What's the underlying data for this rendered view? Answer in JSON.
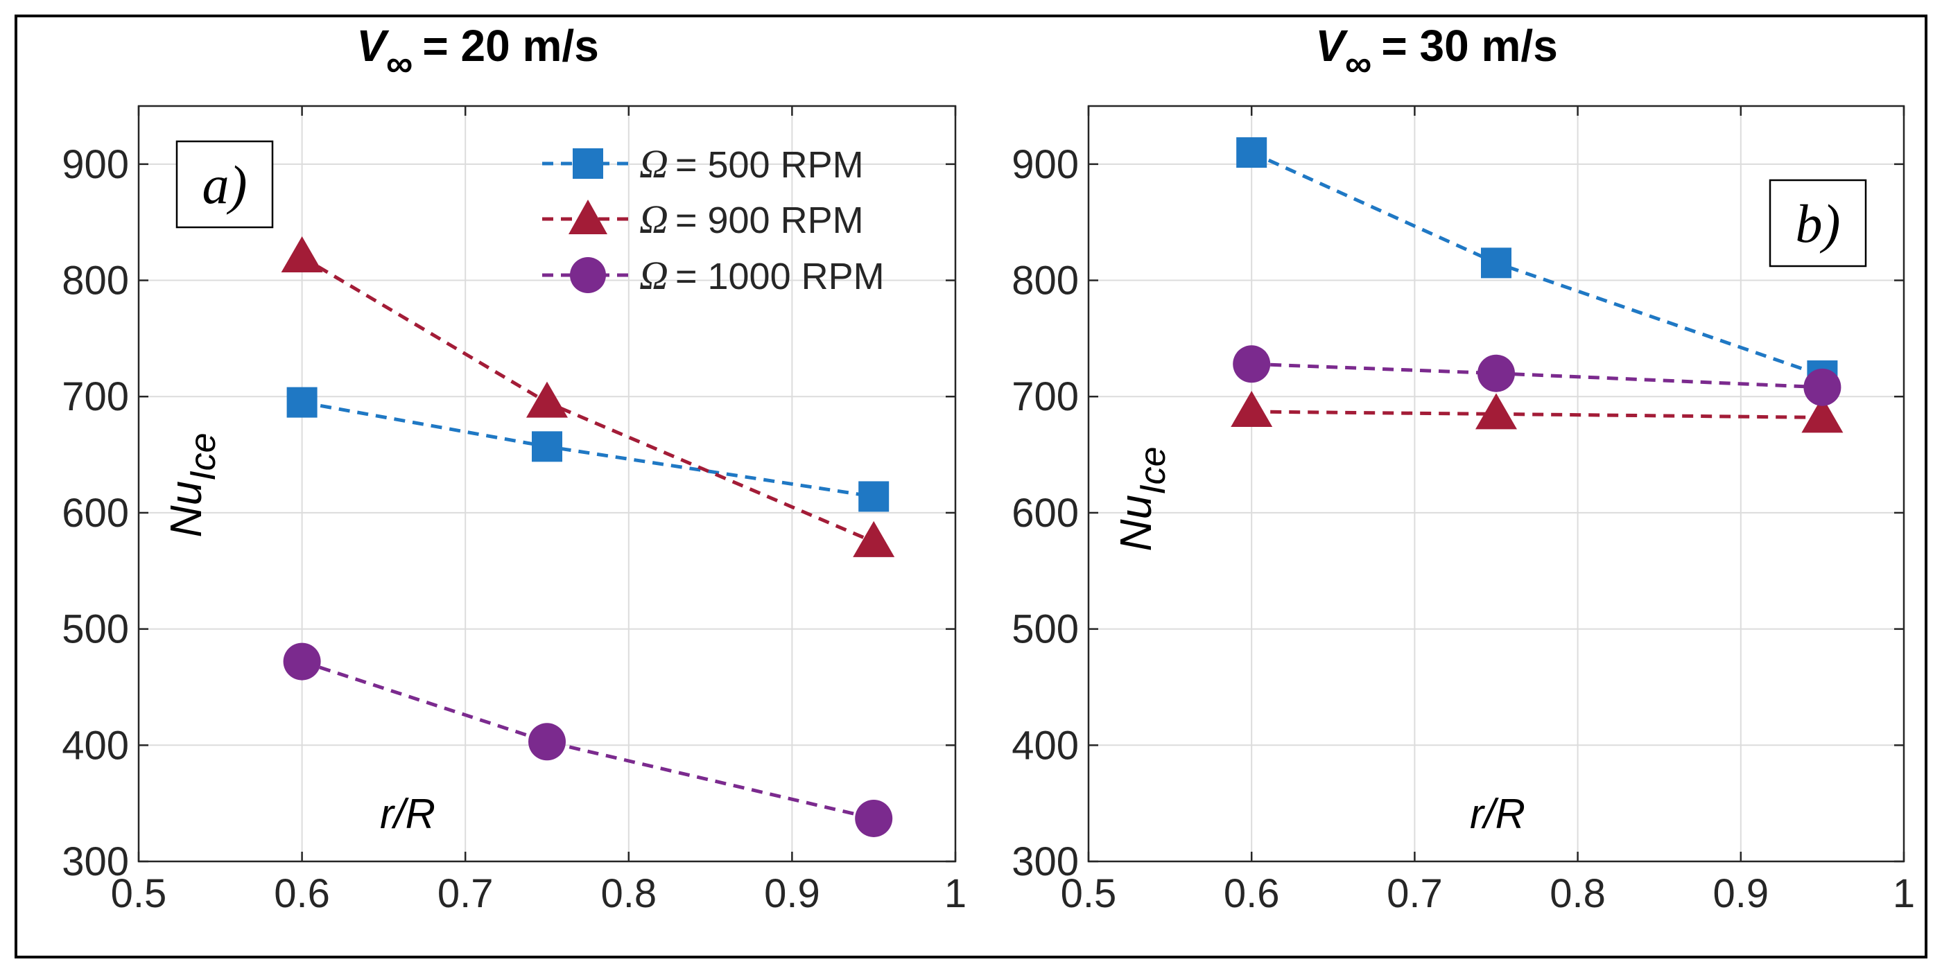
{
  "chart_data": [
    {
      "type": "line",
      "panel": "a)",
      "title": {
        "symbol": "V",
        "subscript": "∞",
        "text": "= 20 m/s"
      },
      "xlabel": "r/R",
      "ylabel": {
        "base": "Nu",
        "subscript": "Ice"
      },
      "xlim": [
        0.5,
        1
      ],
      "ylim": [
        300,
        950
      ],
      "xticks": [
        0.5,
        0.6,
        0.7,
        0.8,
        0.9,
        1
      ],
      "xticklabels": [
        "0.5",
        "0.6",
        "0.7",
        "0.8",
        "0.9",
        "1"
      ],
      "yticks": [
        300,
        400,
        500,
        600,
        700,
        800,
        900
      ],
      "yticklabels": [
        "300",
        "400",
        "500",
        "600",
        "700",
        "800",
        "900"
      ],
      "grid": true,
      "legend": "top-right",
      "series": [
        {
          "name": "Ω = 500 RPM",
          "symbol": "Ω",
          "label": "= 500 RPM",
          "marker": "square",
          "color": "#1f78c4",
          "x": [
            0.6,
            0.75,
            0.95
          ],
          "y": [
            695,
            657,
            614
          ]
        },
        {
          "name": "Ω = 900 RPM",
          "symbol": "Ω",
          "label": "= 900 RPM",
          "marker": "triangle",
          "color": "#a31c37",
          "x": [
            0.6,
            0.75,
            0.95
          ],
          "y": [
            820,
            695,
            575
          ]
        },
        {
          "name": "Ω = 1000 RPM",
          "symbol": "Ω",
          "label": "= 1000 RPM",
          "marker": "circle",
          "color": "#7b2a8e",
          "x": [
            0.6,
            0.75,
            0.95
          ],
          "y": [
            472,
            403,
            337
          ]
        }
      ]
    },
    {
      "type": "line",
      "panel": "b)",
      "title": {
        "symbol": "V",
        "subscript": "∞",
        "text": "= 30 m/s"
      },
      "xlabel": "r/R",
      "ylabel": {
        "base": "Nu",
        "subscript": "Ice"
      },
      "xlim": [
        0.5,
        1
      ],
      "ylim": [
        300,
        950
      ],
      "xticks": [
        0.5,
        0.6,
        0.7,
        0.8,
        0.9,
        1
      ],
      "xticklabels": [
        "0.5",
        "0.6",
        "0.7",
        "0.8",
        "0.9",
        "1"
      ],
      "yticks": [
        300,
        400,
        500,
        600,
        700,
        800,
        900
      ],
      "yticklabels": [
        "300",
        "400",
        "500",
        "600",
        "700",
        "800",
        "900"
      ],
      "grid": true,
      "legend": "none",
      "series": [
        {
          "name": "Ω = 500 RPM",
          "marker": "square",
          "color": "#1f78c4",
          "x": [
            0.6,
            0.75,
            0.95
          ],
          "y": [
            910,
            815,
            718
          ]
        },
        {
          "name": "Ω = 900 RPM",
          "marker": "triangle",
          "color": "#a31c37",
          "x": [
            0.6,
            0.75,
            0.95
          ],
          "y": [
            687,
            685,
            682
          ]
        },
        {
          "name": "Ω = 1000 RPM",
          "marker": "circle",
          "color": "#7b2a8e",
          "x": [
            0.6,
            0.75,
            0.95
          ],
          "y": [
            728,
            720,
            708
          ]
        }
      ]
    }
  ]
}
